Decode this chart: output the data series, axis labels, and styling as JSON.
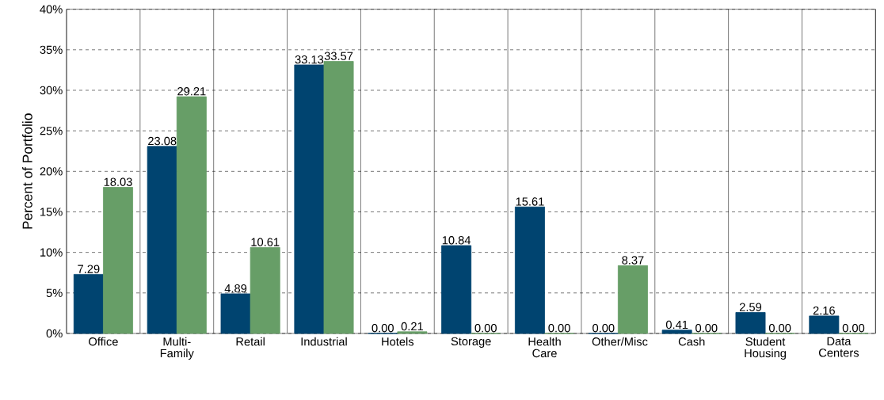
{
  "chart_data": {
    "type": "bar",
    "ylabel": "Percent of Portfolio",
    "categories": [
      "Office",
      "Multi-Family",
      "Retail",
      "Industrial",
      "Hotels",
      "Storage",
      "Health Care",
      "Other/Misc",
      "Cash",
      "Student Housing",
      "Data Centers"
    ],
    "series": [
      {
        "color": "#004470",
        "values": [
          7.29,
          23.08,
          4.89,
          33.13,
          0.0,
          10.84,
          15.61,
          0.0,
          0.41,
          2.59,
          2.16
        ],
        "value_labels": [
          "7.29",
          "23.08",
          "4.89",
          "33.13",
          "0.00",
          "10.84",
          "15.61",
          "0.00",
          "0.41",
          "2.59",
          "2.16"
        ]
      },
      {
        "color": "#679e67",
        "values": [
          18.03,
          29.21,
          10.61,
          33.57,
          0.21,
          0.0,
          0.0,
          8.37,
          0.0,
          0.0,
          0.0
        ],
        "value_labels": [
          "18.03",
          "29.21",
          "10.61",
          "33.57",
          "0.21",
          "0.00",
          "0.00",
          "8.37",
          "0.00",
          "0.00",
          "0.00"
        ]
      }
    ],
    "ylim": [
      0,
      40
    ],
    "yticks": [
      {
        "value": 0,
        "label": "0%"
      },
      {
        "value": 5,
        "label": "5%"
      },
      {
        "value": 10,
        "label": "10%"
      },
      {
        "value": 15,
        "label": "15%"
      },
      {
        "value": 20,
        "label": "20%"
      },
      {
        "value": 25,
        "label": "25%"
      },
      {
        "value": 30,
        "label": "30%"
      },
      {
        "value": 35,
        "label": "35%"
      },
      {
        "value": 40,
        "label": "40%"
      }
    ],
    "grid": true
  }
}
